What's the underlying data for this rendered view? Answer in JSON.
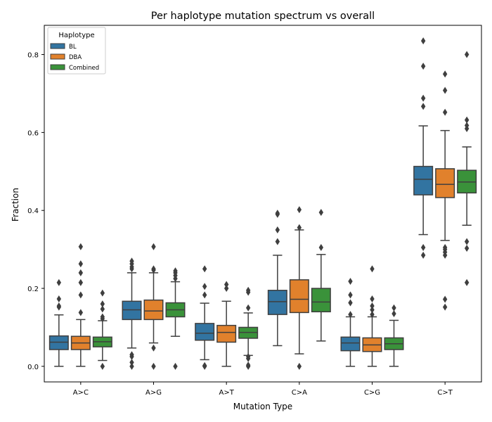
{
  "chart_data": {
    "type": "box",
    "title": "Per haplotype mutation spectrum vs overall",
    "xlabel": "Mutation Type",
    "ylabel": "Fraction",
    "ylim": [
      -0.04,
      0.875
    ],
    "yticks": [
      0.0,
      0.2,
      0.4,
      0.6,
      0.8
    ],
    "ytick_labels": [
      "0.0",
      "0.2",
      "0.4",
      "0.6",
      "0.8"
    ],
    "categories": [
      "A>C",
      "A>G",
      "A>T",
      "C>A",
      "C>G",
      "C>T"
    ],
    "legend": {
      "title": "Haplotype",
      "placement": "top-left"
    },
    "series": [
      {
        "name": "BL",
        "color": "#3274a1",
        "boxes": [
          {
            "whislo": 0.0,
            "q1": 0.043,
            "med": 0.062,
            "q3": 0.078,
            "whishi": 0.132,
            "fliers": [
              0.152,
              0.155,
              0.173,
              0.215
            ]
          },
          {
            "whislo": 0.047,
            "q1": 0.12,
            "med": 0.145,
            "q3": 0.167,
            "whishi": 0.24,
            "fliers": [
              0.0,
              0.01,
              0.025,
              0.03,
              0.25,
              0.255,
              0.263,
              0.27
            ]
          },
          {
            "whislo": 0.017,
            "q1": 0.067,
            "med": 0.085,
            "q3": 0.11,
            "whishi": 0.162,
            "fliers": [
              0.0,
              0.002,
              0.183,
              0.205,
              0.25
            ]
          },
          {
            "whislo": 0.053,
            "q1": 0.133,
            "med": 0.166,
            "q3": 0.195,
            "whishi": 0.285,
            "fliers": [
              0.32,
              0.35,
              0.39,
              0.393
            ]
          },
          {
            "whislo": 0.0,
            "q1": 0.04,
            "med": 0.06,
            "q3": 0.075,
            "whishi": 0.127,
            "fliers": [
              0.133,
              0.163,
              0.183,
              0.218
            ]
          },
          {
            "whislo": 0.338,
            "q1": 0.44,
            "med": 0.48,
            "q3": 0.513,
            "whishi": 0.617,
            "fliers": [
              0.285,
              0.305,
              0.667,
              0.688,
              0.77,
              0.835
            ]
          }
        ]
      },
      {
        "name": "DBA",
        "color": "#e1812c",
        "boxes": [
          {
            "whislo": 0.0,
            "q1": 0.043,
            "med": 0.06,
            "q3": 0.077,
            "whishi": 0.12,
            "fliers": [
              0.138,
              0.183,
              0.215,
              0.24,
              0.263,
              0.307
            ]
          },
          {
            "whislo": 0.06,
            "q1": 0.12,
            "med": 0.142,
            "q3": 0.17,
            "whishi": 0.24,
            "fliers": [
              0.0,
              0.047,
              0.247,
              0.25,
              0.307
            ]
          },
          {
            "whislo": 0.0,
            "q1": 0.062,
            "med": 0.087,
            "q3": 0.105,
            "whishi": 0.167,
            "fliers": [
              0.2,
              0.21
            ]
          },
          {
            "whislo": 0.032,
            "q1": 0.138,
            "med": 0.172,
            "q3": 0.222,
            "whishi": 0.35,
            "fliers": [
              0.0,
              0.356,
              0.402
            ]
          },
          {
            "whislo": 0.0,
            "q1": 0.038,
            "med": 0.055,
            "q3": 0.073,
            "whishi": 0.127,
            "fliers": [
              0.133,
              0.145,
              0.155,
              0.173,
              0.25
            ]
          },
          {
            "whislo": 0.323,
            "q1": 0.433,
            "med": 0.467,
            "q3": 0.507,
            "whishi": 0.605,
            "fliers": [
              0.152,
              0.172,
              0.285,
              0.293,
              0.3,
              0.305,
              0.652,
              0.708,
              0.75
            ]
          }
        ]
      },
      {
        "name": "Combined",
        "color": "#3a923a",
        "boxes": [
          {
            "whislo": 0.015,
            "q1": 0.05,
            "med": 0.063,
            "q3": 0.075,
            "whishi": 0.117,
            "fliers": [
              0.0,
              0.122,
              0.127,
              0.147,
              0.16,
              0.188
            ]
          },
          {
            "whislo": 0.077,
            "q1": 0.127,
            "med": 0.145,
            "q3": 0.163,
            "whishi": 0.217,
            "fliers": [
              0.0,
              0.225,
              0.233,
              0.24,
              0.245
            ]
          },
          {
            "whislo": 0.028,
            "q1": 0.072,
            "med": 0.087,
            "q3": 0.1,
            "whishi": 0.137,
            "fliers": [
              0.0,
              0.003,
              0.02,
              0.025,
              0.15,
              0.19,
              0.195
            ]
          },
          {
            "whislo": 0.065,
            "q1": 0.14,
            "med": 0.165,
            "q3": 0.2,
            "whishi": 0.287,
            "fliers": [
              0.305,
              0.395
            ]
          },
          {
            "whislo": 0.0,
            "q1": 0.043,
            "med": 0.058,
            "q3": 0.073,
            "whishi": 0.118,
            "fliers": [
              0.135,
              0.15
            ]
          },
          {
            "whislo": 0.362,
            "q1": 0.445,
            "med": 0.473,
            "q3": 0.503,
            "whishi": 0.563,
            "fliers": [
              0.215,
              0.303,
              0.32,
              0.61,
              0.618,
              0.632,
              0.8
            ]
          }
        ]
      }
    ]
  }
}
